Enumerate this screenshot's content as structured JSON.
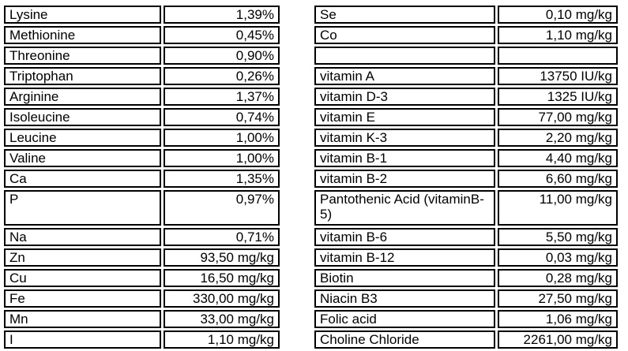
{
  "colors": {
    "border": "#000000",
    "text": "#000000",
    "background": "#ffffff"
  },
  "left_table": {
    "name": "amino-acids-and-minerals",
    "columns": [
      "component",
      "amount"
    ],
    "rows": [
      {
        "label": "Lysine",
        "value": "1,39%"
      },
      {
        "label": "Methionine",
        "value": "0,45%"
      },
      {
        "label": "Threonine",
        "value": "0,90%"
      },
      {
        "label": "Triptophan",
        "value": "0,26%"
      },
      {
        "label": "Arginine",
        "value": "1,37%"
      },
      {
        "label": "Isoleucine",
        "value": "0,74%"
      },
      {
        "label": "Leucine",
        "value": "1,00%"
      },
      {
        "label": "Valine",
        "value": "1,00%"
      },
      {
        "label": "Ca",
        "value": "1,35%"
      },
      {
        "label": "P",
        "value": "0,97%",
        "tall": true
      },
      {
        "label": "Na",
        "value": "0,71%"
      },
      {
        "label": "Zn",
        "value": "93,50 mg/kg"
      },
      {
        "label": "Cu",
        "value": "16,50 mg/kg"
      },
      {
        "label": "Fe",
        "value": "330,00 mg/kg"
      },
      {
        "label": "Mn",
        "value": "33,00 mg/kg"
      },
      {
        "label": "I",
        "value": "1,10 mg/kg"
      }
    ]
  },
  "right_table": {
    "name": "trace-elements-and-vitamins",
    "columns": [
      "component",
      "amount"
    ],
    "rows": [
      {
        "label": "Se",
        "value": "0,10 mg/kg"
      },
      {
        "label": "Co",
        "value": "1,10 mg/kg"
      },
      {
        "label": "",
        "value": "",
        "empty": true
      },
      {
        "label": "vitamin A",
        "value": "13750 IU/kg"
      },
      {
        "label": "vitamin D-3",
        "value": "1325 IU/kg"
      },
      {
        "label": "vitamin E",
        "value": "77,00 mg/kg"
      },
      {
        "label": "vitamin K-3",
        "value": "2,20 mg/kg"
      },
      {
        "label": "vitamin B-1",
        "value": "4,40 mg/kg"
      },
      {
        "label": "vitamin B-2",
        "value": "6,60 mg/kg"
      },
      {
        "label": "Pantothenic Acid (vitaminB-5)",
        "value": "11,00 mg/kg",
        "tall": true
      },
      {
        "label": "vitamin B-6",
        "value": "5,50 mg/kg"
      },
      {
        "label": "vitamin B-12",
        "value": "0,03 mg/kg"
      },
      {
        "label": "Biotin",
        "value": "0,28 mg/kg"
      },
      {
        "label": "Niacin B3",
        "value": "27,50 mg/kg"
      },
      {
        "label": "Folic acid",
        "value": "1,06 mg/kg"
      },
      {
        "label": "Choline Chloride",
        "value": "2261,00 mg/kg"
      }
    ]
  }
}
